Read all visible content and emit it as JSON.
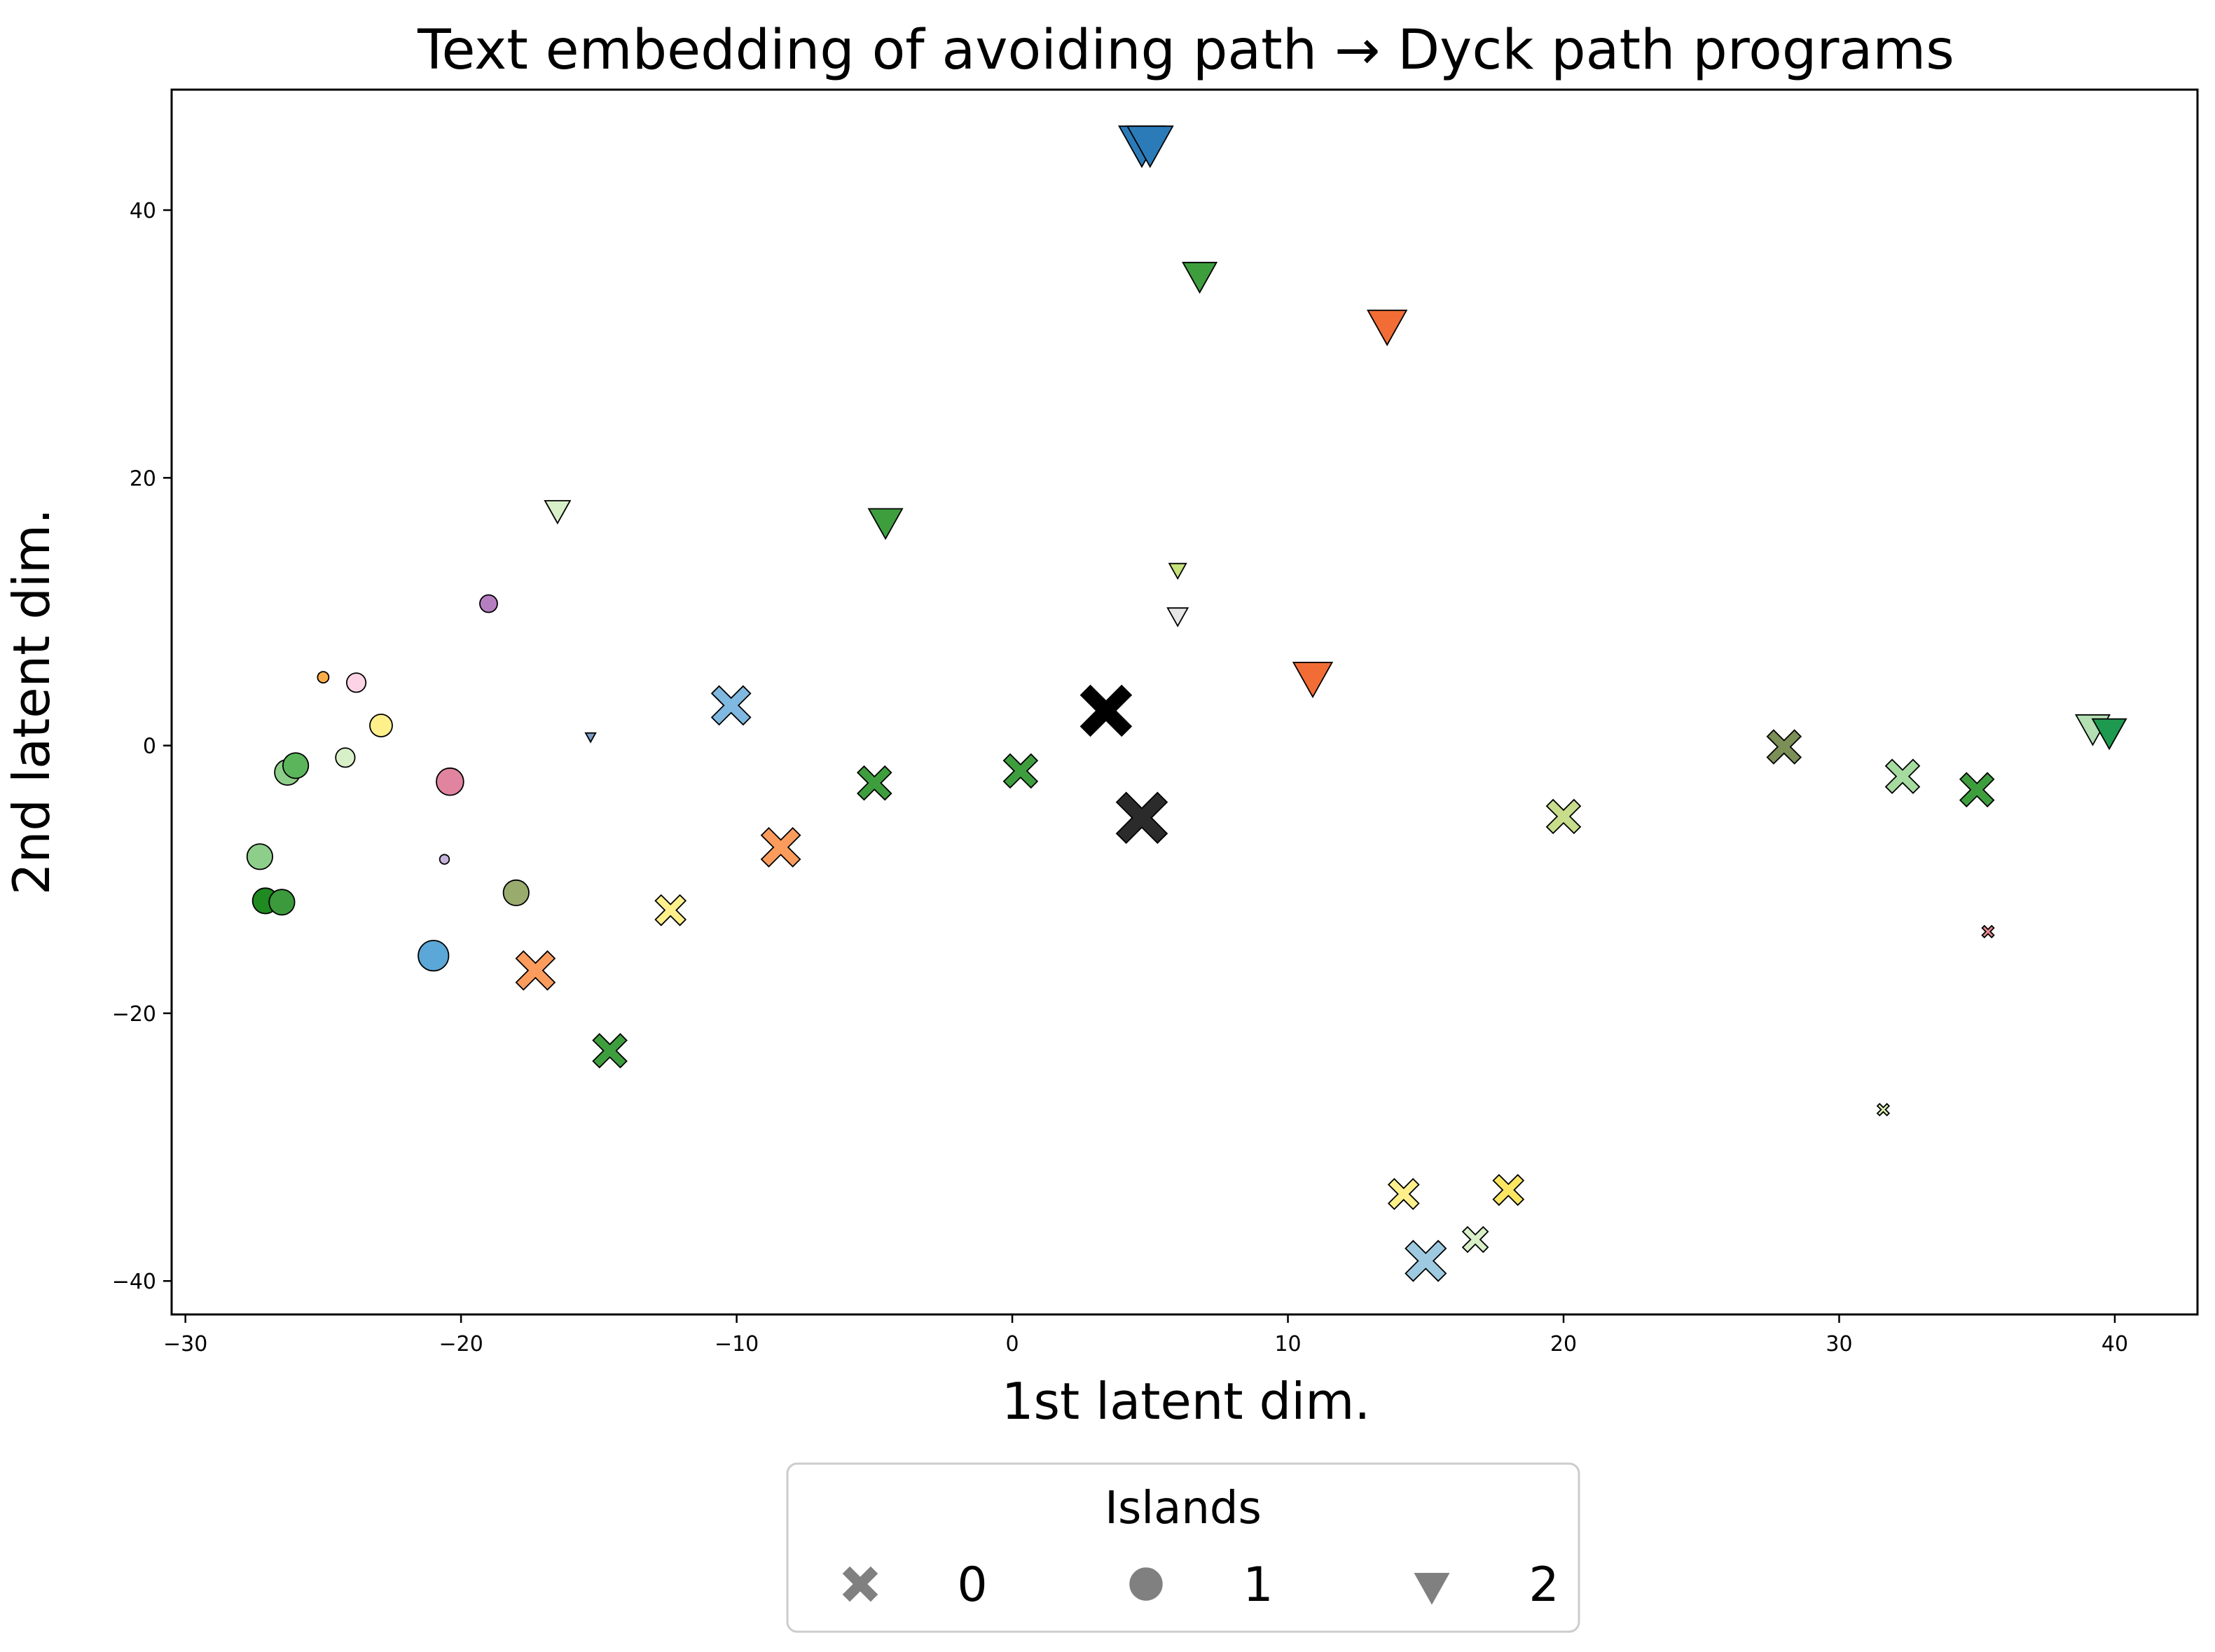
{
  "chart_data": {
    "type": "scatter",
    "title": "Text embedding of avoiding path → Dyck path programs",
    "xlabel": "1st latent dim.",
    "ylabel": "2nd latent dim.",
    "xlim": [
      -30.5,
      43.0
    ],
    "ylim": [
      -42.5,
      49.0
    ],
    "x_ticks": [
      -30,
      -20,
      -10,
      0,
      10,
      20,
      30,
      40
    ],
    "y_ticks": [
      -40,
      -20,
      0,
      20,
      40
    ],
    "x_tick_labels": [
      "−30",
      "−20",
      "−10",
      "0",
      "10",
      "20",
      "30",
      "40"
    ],
    "y_tick_labels": [
      "−40",
      "−20",
      "0",
      "20",
      "40"
    ],
    "grid": false,
    "legend": {
      "title": "Islands",
      "placement": "bottom-center",
      "entries": [
        {
          "label": "0",
          "marker": "x"
        },
        {
          "label": "1",
          "marker": "o"
        },
        {
          "label": "2",
          "marker": "v"
        }
      ]
    },
    "series": [
      {
        "island": "0",
        "marker": "x",
        "points": [
          {
            "x": 3.4,
            "y": 2.6,
            "size": 1.5,
            "color": "#000000"
          },
          {
            "x": 4.7,
            "y": -5.4,
            "size": 1.5,
            "color": "#2b2b2b"
          },
          {
            "x": -10.2,
            "y": 3.0,
            "size": 1.15,
            "color": "#7fb8e0"
          },
          {
            "x": -8.4,
            "y": -7.6,
            "size": 1.15,
            "color": "#fc9c5c"
          },
          {
            "x": -17.3,
            "y": -16.8,
            "size": 1.15,
            "color": "#fc9c5c"
          },
          {
            "x": -12.4,
            "y": -12.3,
            "size": 0.9,
            "color": "#fff08c"
          },
          {
            "x": -14.6,
            "y": -22.8,
            "size": 1.0,
            "color": "#3e9e3e"
          },
          {
            "x": -5.0,
            "y": -2.8,
            "size": 1.0,
            "color": "#3e9e3e"
          },
          {
            "x": 0.3,
            "y": -1.9,
            "size": 1.0,
            "color": "#3e9e3e"
          },
          {
            "x": 20.0,
            "y": -5.3,
            "size": 1.0,
            "color": "#c7dd8c"
          },
          {
            "x": 28.0,
            "y": -0.1,
            "size": 1.0,
            "color": "#7b8f56"
          },
          {
            "x": 32.3,
            "y": -2.3,
            "size": 1.0,
            "color": "#a6dba0"
          },
          {
            "x": 35.0,
            "y": -3.3,
            "size": 1.0,
            "color": "#3e9e3e"
          },
          {
            "x": 35.4,
            "y": -13.9,
            "size": 0.35,
            "color": "#e8898f"
          },
          {
            "x": 31.6,
            "y": -27.2,
            "size": 0.35,
            "color": "#d9efb0"
          },
          {
            "x": 15.0,
            "y": -38.5,
            "size": 1.2,
            "color": "#9ecae1"
          },
          {
            "x": 14.2,
            "y": -33.5,
            "size": 0.9,
            "color": "#fff08c"
          },
          {
            "x": 18.0,
            "y": -33.2,
            "size": 0.9,
            "color": "#fde762"
          },
          {
            "x": 16.8,
            "y": -36.9,
            "size": 0.75,
            "color": "#d8f0c8"
          }
        ]
      },
      {
        "island": "1",
        "marker": "o",
        "points": [
          {
            "x": -25.0,
            "y": 5.1,
            "size": 0.35,
            "color": "#fdae4b"
          },
          {
            "x": -23.8,
            "y": 4.7,
            "size": 0.6,
            "color": "#fcd4e6"
          },
          {
            "x": -19.0,
            "y": 10.6,
            "size": 0.55,
            "color": "#b57ec0"
          },
          {
            "x": -22.9,
            "y": 1.5,
            "size": 0.7,
            "color": "#fff08c"
          },
          {
            "x": -24.2,
            "y": -0.9,
            "size": 0.6,
            "color": "#d8f0c8"
          },
          {
            "x": -26.3,
            "y": -2.0,
            "size": 0.8,
            "color": "#8dcf8a"
          },
          {
            "x": -26.0,
            "y": -1.5,
            "size": 0.8,
            "color": "#5bb55b"
          },
          {
            "x": -20.4,
            "y": -2.7,
            "size": 0.85,
            "color": "#e0849f"
          },
          {
            "x": -20.6,
            "y": -8.5,
            "size": 0.3,
            "color": "#c6b3dc"
          },
          {
            "x": -27.3,
            "y": -8.3,
            "size": 0.8,
            "color": "#8dcf8a"
          },
          {
            "x": -27.1,
            "y": -11.6,
            "size": 0.8,
            "color": "#1f8a1f"
          },
          {
            "x": -26.5,
            "y": -11.7,
            "size": 0.8,
            "color": "#3c9a3c"
          },
          {
            "x": -18.0,
            "y": -11.0,
            "size": 0.8,
            "color": "#9aab6e"
          },
          {
            "x": -21.0,
            "y": -15.7,
            "size": 0.95,
            "color": "#5aa7d8"
          }
        ]
      },
      {
        "island": "2",
        "marker": "v",
        "points": [
          {
            "x": 4.7,
            "y": 45.2,
            "size": 1.35,
            "color": "#2b7bb9"
          },
          {
            "x": 5.0,
            "y": 45.2,
            "size": 1.35,
            "color": "#2b7bb9"
          },
          {
            "x": 6.8,
            "y": 35.3,
            "size": 1.0,
            "color": "#3e9e3e"
          },
          {
            "x": 13.6,
            "y": 31.6,
            "size": 1.15,
            "color": "#f26d35"
          },
          {
            "x": 10.9,
            "y": 5.3,
            "size": 1.15,
            "color": "#f26d35"
          },
          {
            "x": -16.5,
            "y": 17.7,
            "size": 0.75,
            "color": "#d8f0c8"
          },
          {
            "x": -4.6,
            "y": 16.9,
            "size": 1.0,
            "color": "#3e9e3e"
          },
          {
            "x": 6.0,
            "y": 13.2,
            "size": 0.5,
            "color": "#c5e27b"
          },
          {
            "x": 6.0,
            "y": 9.8,
            "size": 0.6,
            "color": "#e6e6e6"
          },
          {
            "x": -15.3,
            "y": 0.7,
            "size": 0.3,
            "color": "#7a9cc6"
          },
          {
            "x": 39.2,
            "y": 1.5,
            "size": 1.0,
            "color": "#b3dfb3"
          },
          {
            "x": 39.8,
            "y": 1.2,
            "size": 1.0,
            "color": "#1e9a50"
          }
        ]
      }
    ]
  }
}
